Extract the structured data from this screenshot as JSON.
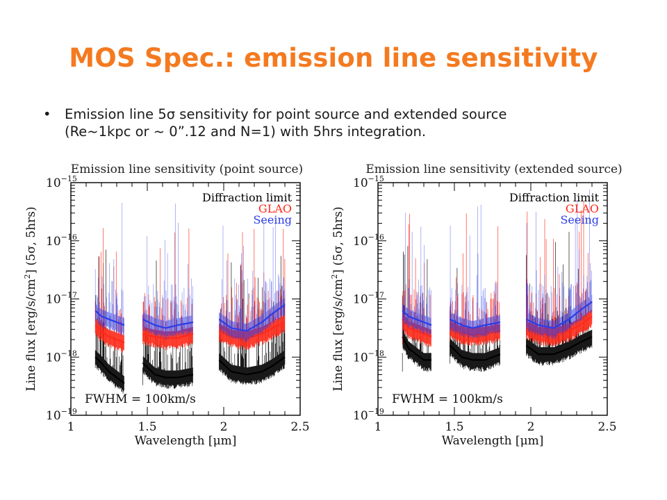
{
  "slide": {
    "title": "MOS Spec.: emission line sensitivity",
    "bullet_symbol": "•",
    "bullet_lines": [
      "Emission line 5σ sensitivity for point source and extended source",
      "(Re~1kpc or ~ 0”.12 and N=1) with 5hrs integration."
    ]
  },
  "colors": {
    "title": "#F47A20",
    "diffraction": "#000000",
    "glao": "#FF2A1A",
    "seeing": "#2A3CE8"
  },
  "chart_data": [
    {
      "type": "line",
      "title": "Emission line sensitivity (point source)",
      "xlabel": "Wavelength [μm]",
      "ylabel_parts": [
        "Line flux [erg/s/cm",
        "2",
        "] (5σ, 5hrs)"
      ],
      "xlim": [
        1.0,
        2.5
      ],
      "ylim_log10": [
        -19,
        -15
      ],
      "y_scale": "log",
      "x_ticks": [
        "1",
        "1.5",
        "2",
        "2.5"
      ],
      "y_ticks": [
        {
          "base": "10",
          "exp": "−15",
          "value": -15
        },
        {
          "base": "10",
          "exp": "−16",
          "value": -16
        },
        {
          "base": "10",
          "exp": "−17",
          "value": -17
        },
        {
          "base": "10",
          "exp": "−18",
          "value": -18
        },
        {
          "base": "10",
          "exp": "−19",
          "value": -19
        }
      ],
      "legend": [
        "Diffraction limit",
        "GLAO",
        "Seeing"
      ],
      "legend_position": "top-right",
      "annotation": "FWHM = 100km/s",
      "series": [
        {
          "name": "Diffraction limit",
          "segments": [
            {
              "x": [
                1.16,
                1.2,
                1.25,
                1.3,
                1.35
              ],
              "log10y": [
                -18.0,
                -18.1,
                -18.25,
                -18.35,
                -18.45
              ]
            },
            {
              "x": [
                1.47,
                1.55,
                1.62,
                1.7,
                1.8
              ],
              "log10y": [
                -18.1,
                -18.3,
                -18.35,
                -18.35,
                -18.3
              ]
            },
            {
              "x": [
                1.97,
                2.05,
                2.15,
                2.25,
                2.32,
                2.4
              ],
              "log10y": [
                -18.05,
                -18.25,
                -18.3,
                -18.25,
                -18.15,
                -18.0
              ]
            }
          ]
        },
        {
          "name": "GLAO",
          "segments": [
            {
              "x": [
                1.16,
                1.2,
                1.25,
                1.3,
                1.35
              ],
              "log10y": [
                -17.45,
                -17.55,
                -17.65,
                -17.7,
                -17.75
              ]
            },
            {
              "x": [
                1.47,
                1.55,
                1.62,
                1.7,
                1.8
              ],
              "log10y": [
                -17.6,
                -17.65,
                -17.68,
                -17.67,
                -17.6
              ]
            },
            {
              "x": [
                1.97,
                2.05,
                2.15,
                2.25,
                2.32,
                2.4
              ],
              "log10y": [
                -17.55,
                -17.65,
                -17.68,
                -17.6,
                -17.5,
                -17.4
              ]
            }
          ]
        },
        {
          "name": "Seeing",
          "segments": [
            {
              "x": [
                1.16,
                1.2,
                1.25,
                1.3,
                1.35
              ],
              "log10y": [
                -17.2,
                -17.3,
                -17.35,
                -17.4,
                -17.45
              ]
            },
            {
              "x": [
                1.47,
                1.55,
                1.62,
                1.7,
                1.8
              ],
              "log10y": [
                -17.35,
                -17.45,
                -17.5,
                -17.45,
                -17.4
              ]
            },
            {
              "x": [
                1.97,
                2.05,
                2.15,
                2.25,
                2.32,
                2.4
              ],
              "log10y": [
                -17.35,
                -17.5,
                -17.55,
                -17.4,
                -17.25,
                -17.1
              ]
            }
          ]
        }
      ]
    },
    {
      "type": "line",
      "title": "Emission line sensitivity (extended source)",
      "xlabel": "Wavelength [μm]",
      "ylabel_parts": [
        "Line flux [erg/s/cm",
        "2",
        "] (5σ, 5hrs)"
      ],
      "xlim": [
        1.0,
        2.5
      ],
      "ylim_log10": [
        -19,
        -15
      ],
      "y_scale": "log",
      "x_ticks": [
        "1",
        "1.5",
        "2",
        "2.5"
      ],
      "y_ticks": [
        {
          "base": "10",
          "exp": "−15",
          "value": -15
        },
        {
          "base": "10",
          "exp": "−16",
          "value": -16
        },
        {
          "base": "10",
          "exp": "−17",
          "value": -17
        },
        {
          "base": "10",
          "exp": "−18",
          "value": -18
        },
        {
          "base": "10",
          "exp": "−19",
          "value": -19
        }
      ],
      "legend": [
        "Diffraction limit",
        "GLAO",
        "Seeing"
      ],
      "legend_position": "top-right",
      "annotation": "FWHM = 100km/s",
      "series": [
        {
          "name": "Diffraction limit",
          "segments": [
            {
              "x": [
                1.16,
                1.2,
                1.25,
                1.3,
                1.35
              ],
              "log10y": [
                -17.65,
                -17.85,
                -17.95,
                -18.05,
                -18.05
              ]
            },
            {
              "x": [
                1.47,
                1.55,
                1.62,
                1.7,
                1.8
              ],
              "log10y": [
                -17.8,
                -18.0,
                -18.05,
                -18.05,
                -17.95
              ]
            },
            {
              "x": [
                1.97,
                2.05,
                2.15,
                2.25,
                2.32,
                2.4
              ],
              "log10y": [
                -17.8,
                -17.95,
                -17.95,
                -17.85,
                -17.75,
                -17.65
              ]
            }
          ]
        },
        {
          "name": "GLAO",
          "segments": [
            {
              "x": [
                1.16,
                1.2,
                1.25,
                1.3,
                1.35
              ],
              "log10y": [
                -17.35,
                -17.5,
                -17.55,
                -17.6,
                -17.65
              ]
            },
            {
              "x": [
                1.47,
                1.55,
                1.62,
                1.7,
                1.8
              ],
              "log10y": [
                -17.5,
                -17.6,
                -17.62,
                -17.6,
                -17.55
              ]
            },
            {
              "x": [
                1.97,
                2.05,
                2.15,
                2.25,
                2.32,
                2.4
              ],
              "log10y": [
                -17.5,
                -17.6,
                -17.62,
                -17.55,
                -17.45,
                -17.3
              ]
            }
          ]
        },
        {
          "name": "Seeing",
          "segments": [
            {
              "x": [
                1.16,
                1.2,
                1.25,
                1.3,
                1.35
              ],
              "log10y": [
                -17.2,
                -17.3,
                -17.35,
                -17.4,
                -17.45
              ]
            },
            {
              "x": [
                1.47,
                1.55,
                1.62,
                1.7,
                1.8
              ],
              "log10y": [
                -17.35,
                -17.45,
                -17.5,
                -17.45,
                -17.4
              ]
            },
            {
              "x": [
                1.97,
                2.05,
                2.15,
                2.25,
                2.32,
                2.4
              ],
              "log10y": [
                -17.35,
                -17.45,
                -17.5,
                -17.35,
                -17.2,
                -17.05
              ]
            }
          ]
        }
      ]
    }
  ]
}
